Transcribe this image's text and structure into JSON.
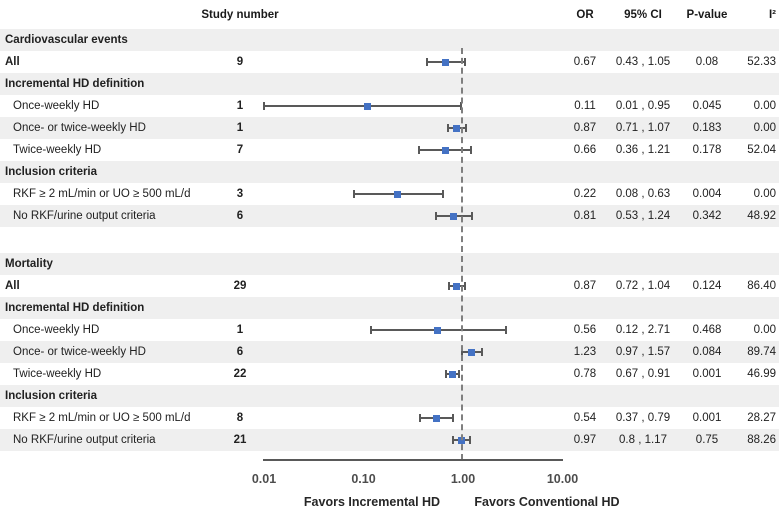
{
  "columns": {
    "study_number": "Study number",
    "or": "OR",
    "ci": "95% CI",
    "p_value": "P-value",
    "i_squared": "I²"
  },
  "captions": {
    "left": "Favors Incremental HD",
    "right": "Favors Conventional HD"
  },
  "colors": {
    "marker_blue": "#4472c4",
    "ci_line_gray": "#595959",
    "reference_dash_gray": "#7f7f7f",
    "row_shade_gray": "#efefef",
    "axis_gray": "#595959"
  },
  "chart_data": {
    "type": "scatter",
    "subtype": "forest-plot",
    "x_scale": "log",
    "x_tick_labels": [
      "0.01",
      "0.10",
      "1.00",
      "10.00"
    ],
    "x_tick_values": [
      0.01,
      0.1,
      1.0,
      10.0
    ],
    "x_range": [
      0.01,
      10
    ],
    "reference_line": 1.0,
    "sections": [
      {
        "rows": [
          {
            "kind": "section-header",
            "label": "Cardiovascular events"
          },
          {
            "kind": "data",
            "label": "All",
            "bold": true,
            "indent": false,
            "study_number": "9",
            "or": 0.67,
            "ci_low": 0.43,
            "ci_high": 1.05,
            "or_text": "0.67",
            "ci_text": "0.43 , 1.05",
            "p_text": "0.08",
            "i2_text": "52.33"
          },
          {
            "kind": "section-header",
            "label": "Incremental HD definition"
          },
          {
            "kind": "data",
            "label": "Once-weekly HD",
            "bold": false,
            "indent": true,
            "study_number": "1",
            "or": 0.11,
            "ci_low": 0.01,
            "ci_high": 0.95,
            "or_text": "0.11",
            "ci_text": "0.01 , 0.95",
            "p_text": "0.045",
            "i2_text": "0.00"
          },
          {
            "kind": "data",
            "label": "Once- or twice-weekly HD",
            "bold": false,
            "indent": true,
            "study_number": "1",
            "or": 0.87,
            "ci_low": 0.71,
            "ci_high": 1.07,
            "or_text": "0.87",
            "ci_text": "0.71 , 1.07",
            "p_text": "0.183",
            "i2_text": "0.00"
          },
          {
            "kind": "data",
            "label": "Twice-weekly HD",
            "bold": false,
            "indent": true,
            "study_number": "7",
            "or": 0.66,
            "ci_low": 0.36,
            "ci_high": 1.21,
            "or_text": "0.66",
            "ci_text": "0.36 , 1.21",
            "p_text": "0.178",
            "i2_text": "52.04"
          },
          {
            "kind": "section-header",
            "label": "Inclusion criteria"
          },
          {
            "kind": "data",
            "label": "RKF ≥ 2 mL/min or UO ≥ 500 mL/d",
            "bold": false,
            "indent": true,
            "study_number": "3",
            "or": 0.22,
            "ci_low": 0.08,
            "ci_high": 0.63,
            "or_text": "0.22",
            "ci_text": "0.08 , 0.63",
            "p_text": "0.004",
            "i2_text": "0.00"
          },
          {
            "kind": "data",
            "label": "No RKF/urine output criteria",
            "bold": false,
            "indent": true,
            "study_number": "6",
            "or": 0.81,
            "ci_low": 0.53,
            "ci_high": 1.24,
            "or_text": "0.81",
            "ci_text": "0.53 , 1.24",
            "p_text": "0.342",
            "i2_text": "48.92"
          }
        ]
      },
      {
        "rows": [
          {
            "kind": "section-header",
            "label": "Mortality"
          },
          {
            "kind": "data",
            "label": "All",
            "bold": true,
            "indent": false,
            "study_number": "29",
            "or": 0.87,
            "ci_low": 0.72,
            "ci_high": 1.04,
            "or_text": "0.87",
            "ci_text": "0.72 , 1.04",
            "p_text": "0.124",
            "i2_text": "86.40"
          },
          {
            "kind": "section-header",
            "label": "Incremental HD definition"
          },
          {
            "kind": "data",
            "label": "Once-weekly HD",
            "bold": false,
            "indent": true,
            "study_number": "1",
            "or": 0.56,
            "ci_low": 0.12,
            "ci_high": 2.71,
            "or_text": "0.56",
            "ci_text": "0.12 , 2.71",
            "p_text": "0.468",
            "i2_text": "0.00"
          },
          {
            "kind": "data",
            "label": "Once- or twice-weekly HD",
            "bold": false,
            "indent": true,
            "study_number": "6",
            "or": 1.23,
            "ci_low": 0.97,
            "ci_high": 1.57,
            "or_text": "1.23",
            "ci_text": "0.97 , 1.57",
            "p_text": "0.084",
            "i2_text": "89.74"
          },
          {
            "kind": "data",
            "label": "Twice-weekly HD",
            "bold": false,
            "indent": true,
            "study_number": "22",
            "or": 0.78,
            "ci_low": 0.67,
            "ci_high": 0.91,
            "or_text": "0.78",
            "ci_text": "0.67 , 0.91",
            "p_text": "0.001",
            "i2_text": "46.99"
          },
          {
            "kind": "section-header",
            "label": "Inclusion criteria"
          },
          {
            "kind": "data",
            "label": "RKF ≥ 2 mL/min or UO ≥ 500 mL/d",
            "bold": false,
            "indent": true,
            "study_number": "8",
            "or": 0.54,
            "ci_low": 0.37,
            "ci_high": 0.79,
            "or_text": "0.54",
            "ci_text": "0.37 , 0.79",
            "p_text": "0.001",
            "i2_text": "28.27"
          },
          {
            "kind": "data",
            "label": "No RKF/urine output criteria",
            "bold": false,
            "indent": true,
            "study_number": "21",
            "or": 0.97,
            "ci_low": 0.8,
            "ci_high": 1.17,
            "or_text": "0.97",
            "ci_text": "0.8 , 1.17",
            "p_text": "0.75",
            "i2_text": "88.26"
          }
        ]
      }
    ]
  }
}
